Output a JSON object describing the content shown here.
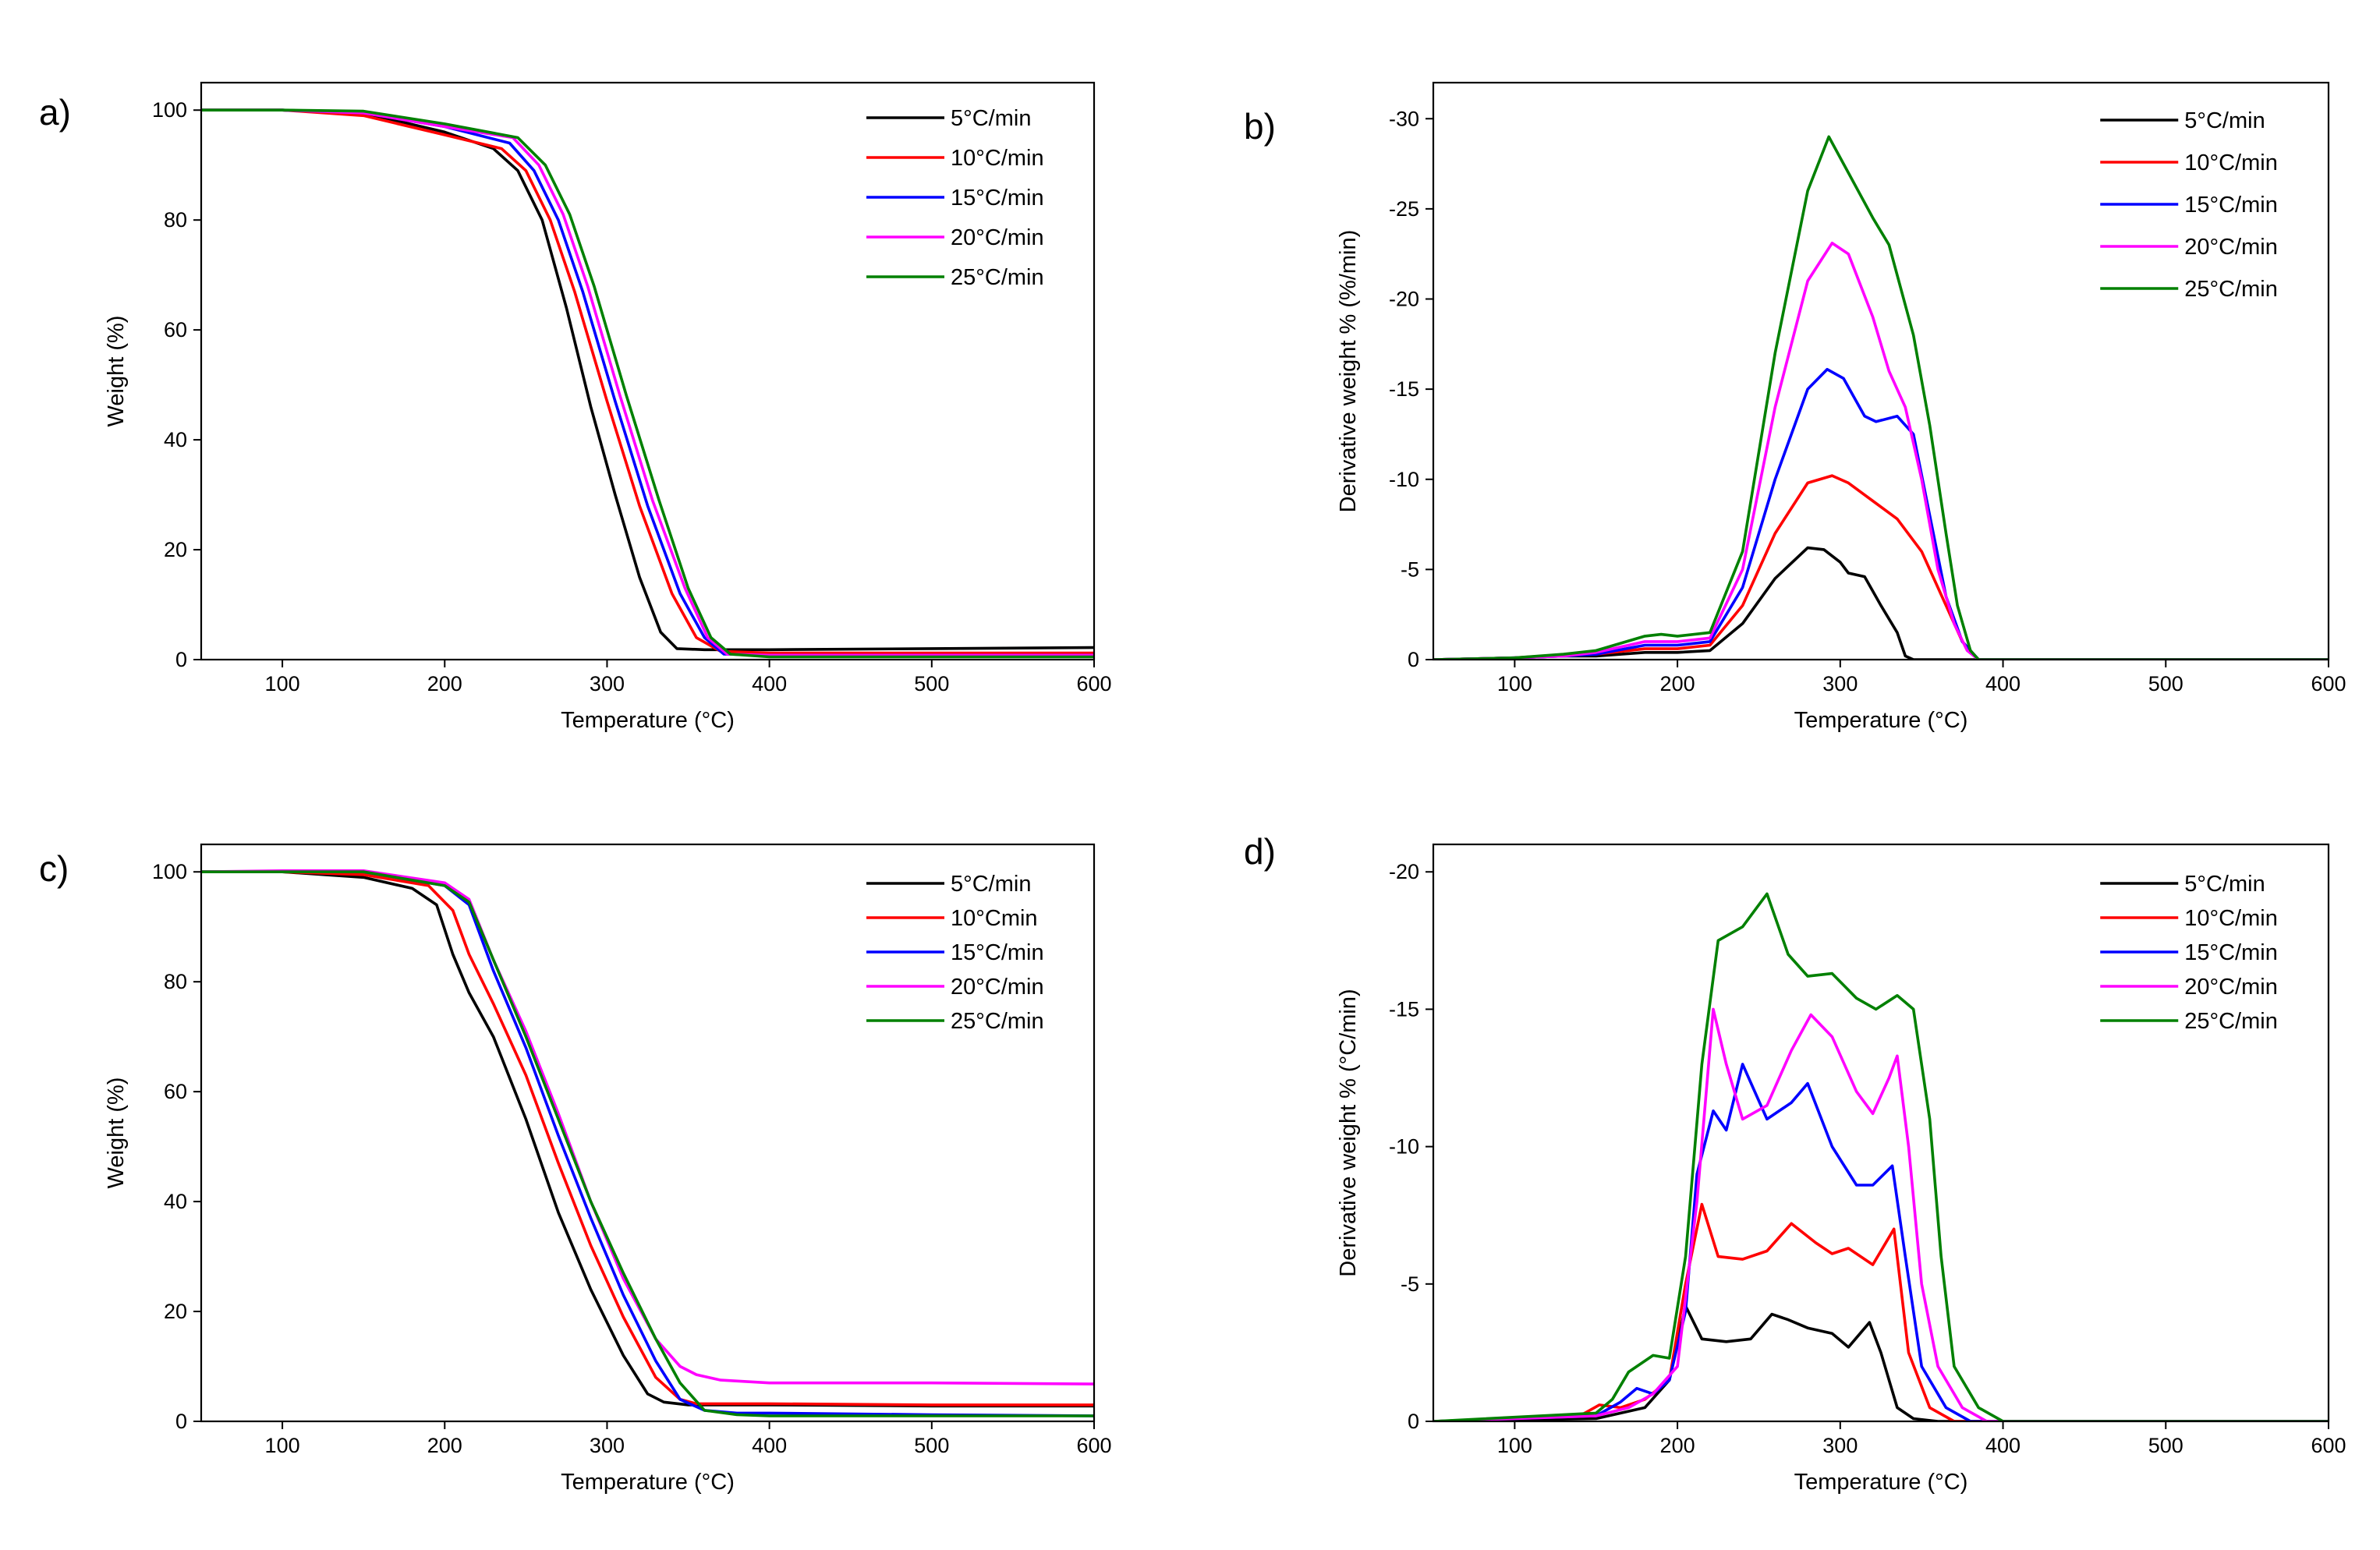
{
  "colors": {
    "5": "#000000",
    "10": "#ff0000",
    "15": "#0000ff",
    "20": "#ff00ff",
    "25": "#008000"
  },
  "chart_data": [
    {
      "id": "a",
      "type": "line",
      "panel_label": "a)",
      "title": "",
      "xlabel": "Temperature (°C)",
      "ylabel": "Weight (%)",
      "xlim": [
        50,
        600
      ],
      "ylim": [
        0,
        105
      ],
      "y_reversed": false,
      "xticks": [
        100,
        200,
        300,
        400,
        500,
        600
      ],
      "yticks": [
        0,
        20,
        40,
        60,
        80,
        100
      ],
      "ytick_labels": [
        "0",
        "20",
        "40",
        "60",
        "80",
        "100"
      ],
      "legend_position": "top-right",
      "series": [
        {
          "name": "5°C/min",
          "color": "#000000",
          "x": [
            50,
            100,
            150,
            200,
            230,
            245,
            260,
            275,
            290,
            305,
            320,
            333,
            343,
            360,
            400,
            500,
            600
          ],
          "y": [
            100,
            100,
            99.5,
            96,
            93,
            89,
            80,
            64,
            46,
            30,
            15,
            5,
            2,
            1.8,
            1.8,
            2,
            2.2
          ]
        },
        {
          "name": "10°C/min",
          "color": "#ff0000",
          "x": [
            50,
            100,
            150,
            200,
            235,
            250,
            265,
            280,
            300,
            320,
            340,
            355,
            370,
            400,
            500,
            600
          ],
          "y": [
            100,
            100,
            99,
            95.5,
            93,
            89,
            80,
            67,
            47,
            28,
            12,
            4,
            1.5,
            1.2,
            1.2,
            1.2
          ]
        },
        {
          "name": "15°C/min",
          "color": "#0000ff",
          "x": [
            50,
            100,
            150,
            200,
            240,
            255,
            270,
            285,
            305,
            325,
            345,
            360,
            372,
            400,
            500,
            600
          ],
          "y": [
            100,
            100,
            99.5,
            97,
            94,
            89,
            80,
            67,
            47,
            28,
            12,
            4,
            1,
            0.8,
            0.8,
            0.8
          ]
        },
        {
          "name": "20°C/min",
          "color": "#ff00ff",
          "x": [
            50,
            100,
            150,
            200,
            242,
            258,
            273,
            288,
            308,
            328,
            348,
            362,
            374,
            400,
            500,
            600
          ],
          "y": [
            100,
            100,
            99.5,
            97,
            95,
            90,
            81,
            68,
            48,
            29,
            13,
            4,
            1,
            0.8,
            0.8,
            0.8
          ]
        },
        {
          "name": "25°C/min",
          "color": "#008000",
          "x": [
            50,
            100,
            150,
            200,
            245,
            262,
            277,
            292,
            312,
            332,
            350,
            364,
            376,
            400,
            500,
            600
          ],
          "y": [
            100,
            100,
            99.8,
            97.5,
            95,
            90,
            81,
            68,
            48,
            29,
            13,
            4,
            1,
            0.5,
            0.5,
            0.5
          ]
        }
      ]
    },
    {
      "id": "b",
      "type": "line",
      "panel_label": "b)",
      "title": "",
      "xlabel": "Temperature (°C)",
      "ylabel": "Derivative weight % (%/min)",
      "xlim": [
        50,
        600
      ],
      "ylim": [
        0,
        32
      ],
      "y_reversed": true,
      "xticks": [
        100,
        200,
        300,
        400,
        500,
        600
      ],
      "yticks": [
        0,
        5,
        10,
        15,
        20,
        25,
        30
      ],
      "ytick_labels": [
        "0",
        "-5",
        "-10",
        "-15",
        "-20",
        "-25",
        "-30"
      ],
      "legend_position": "top-right",
      "series": [
        {
          "name": "5°C/min",
          "color": "#000000",
          "x": [
            50,
            100,
            130,
            150,
            180,
            200,
            220,
            240,
            260,
            280,
            290,
            300,
            305,
            315,
            325,
            335,
            340,
            345,
            360,
            600
          ],
          "y": [
            0,
            0.1,
            0.2,
            0.2,
            0.4,
            0.4,
            0.5,
            2,
            4.5,
            6.2,
            6.1,
            5.4,
            4.8,
            4.6,
            3,
            1.5,
            0.2,
            0,
            0,
            0
          ]
        },
        {
          "name": "10°C/min",
          "color": "#ff0000",
          "x": [
            50,
            100,
            135,
            150,
            180,
            200,
            220,
            240,
            260,
            280,
            295,
            305,
            320,
            335,
            350,
            365,
            375,
            385,
            400,
            600
          ],
          "y": [
            0,
            0.1,
            0.3,
            0.3,
            0.6,
            0.6,
            0.8,
            3,
            7,
            9.8,
            10.2,
            9.8,
            8.8,
            7.8,
            6,
            3,
            1,
            0,
            0,
            0
          ]
        },
        {
          "name": "15°C/min",
          "color": "#0000ff",
          "x": [
            50,
            100,
            130,
            150,
            180,
            200,
            220,
            240,
            260,
            280,
            292,
            302,
            315,
            322,
            335,
            345,
            355,
            365,
            375,
            385,
            400,
            600
          ],
          "y": [
            0,
            0.1,
            0.2,
            0.3,
            0.8,
            0.8,
            1,
            4,
            10,
            15,
            16.1,
            15.6,
            13.5,
            13.2,
            13.5,
            12.5,
            8,
            3.5,
            1,
            0,
            0,
            0
          ]
        },
        {
          "name": "20°C/min",
          "color": "#ff00ff",
          "x": [
            50,
            100,
            130,
            150,
            180,
            200,
            220,
            240,
            260,
            280,
            295,
            305,
            320,
            330,
            340,
            350,
            360,
            370,
            378,
            385,
            400,
            600
          ],
          "y": [
            0,
            0.1,
            0.2,
            0.4,
            1,
            1,
            1.2,
            5,
            14,
            21,
            23.1,
            22.5,
            19,
            16,
            14,
            10,
            5,
            2,
            0.5,
            0,
            0,
            0
          ]
        },
        {
          "name": "25°C/min",
          "color": "#008000",
          "x": [
            50,
            100,
            130,
            150,
            180,
            190,
            200,
            220,
            240,
            260,
            280,
            293,
            305,
            320,
            330,
            345,
            355,
            365,
            372,
            380,
            385,
            400,
            600
          ],
          "y": [
            0,
            0.1,
            0.3,
            0.5,
            1.3,
            1.4,
            1.3,
            1.5,
            6,
            17,
            26,
            29,
            27,
            24.5,
            23,
            18,
            13,
            7,
            3,
            0.5,
            0,
            0,
            0
          ]
        }
      ]
    },
    {
      "id": "c",
      "type": "line",
      "panel_label": "c)",
      "title": "",
      "xlabel": "Temperature (°C)",
      "ylabel": "Weight (%)",
      "xlim": [
        50,
        600
      ],
      "ylim": [
        0,
        105
      ],
      "y_reversed": false,
      "xticks": [
        100,
        200,
        300,
        400,
        500,
        600
      ],
      "yticks": [
        0,
        20,
        40,
        60,
        80,
        100
      ],
      "ytick_labels": [
        "0",
        "20",
        "40",
        "60",
        "80",
        "100"
      ],
      "legend_position": "top-right",
      "series": [
        {
          "name": "5°C/min",
          "color": "#000000",
          "x": [
            50,
            100,
            150,
            180,
            195,
            205,
            215,
            230,
            250,
            270,
            290,
            310,
            325,
            335,
            350,
            400,
            500,
            600
          ],
          "y": [
            100,
            100,
            99,
            97,
            94,
            85,
            78,
            70,
            55,
            38,
            24,
            12,
            5,
            3.5,
            3,
            3,
            2.8,
            2.8
          ]
        },
        {
          "name": "10°Cmin",
          "color": "#ff0000",
          "x": [
            50,
            100,
            150,
            190,
            205,
            215,
            230,
            250,
            270,
            290,
            310,
            330,
            345,
            355,
            370,
            400,
            500,
            600
          ],
          "y": [
            100,
            100,
            99.5,
            97.5,
            93,
            85,
            76,
            63,
            47,
            32,
            19,
            8,
            4,
            3.2,
            3.2,
            3.2,
            3,
            3
          ]
        },
        {
          "name": "15°C/min",
          "color": "#0000ff",
          "x": [
            50,
            100,
            150,
            200,
            215,
            230,
            250,
            270,
            290,
            310,
            330,
            345,
            360,
            380,
            400,
            500,
            600
          ],
          "y": [
            100,
            100,
            100,
            97.5,
            94,
            82,
            68,
            52,
            37,
            23,
            11,
            4,
            2,
            1.5,
            1.5,
            1.2,
            1
          ]
        },
        {
          "name": "20°C/min",
          "color": "#ff00ff",
          "x": [
            50,
            100,
            150,
            200,
            215,
            230,
            250,
            270,
            290,
            310,
            330,
            345,
            355,
            370,
            400,
            500,
            600
          ],
          "y": [
            100,
            100.2,
            100.2,
            98,
            95,
            84,
            71,
            56,
            40,
            26,
            15,
            10,
            8.5,
            7.5,
            7,
            7,
            6.8
          ]
        },
        {
          "name": "25°C/min",
          "color": "#008000",
          "x": [
            50,
            100,
            150,
            200,
            215,
            230,
            250,
            270,
            290,
            310,
            330,
            345,
            360,
            380,
            400,
            500,
            600
          ],
          "y": [
            100,
            100,
            100,
            97.5,
            94.5,
            84,
            70,
            55,
            40,
            27,
            15,
            7,
            2,
            1.2,
            1,
            1,
            1
          ]
        }
      ]
    },
    {
      "id": "d",
      "type": "line",
      "panel_label": "d)",
      "title": "",
      "xlabel": "Temperature (°C)",
      "ylabel": "Derivative weight % (°C/min)",
      "xlim": [
        50,
        600
      ],
      "ylim": [
        0,
        21
      ],
      "y_reversed": true,
      "xticks": [
        100,
        200,
        300,
        400,
        500,
        600
      ],
      "yticks": [
        0,
        5,
        10,
        15,
        20
      ],
      "ytick_labels": [
        "0",
        "-5",
        "-10",
        "-15",
        "-20"
      ],
      "legend_position": "top-right",
      "series": [
        {
          "name": "5°C/min",
          "color": "#000000",
          "x": [
            50,
            150,
            180,
            195,
            205,
            215,
            230,
            245,
            258,
            268,
            280,
            295,
            305,
            318,
            325,
            335,
            345,
            360,
            600
          ],
          "y": [
            0,
            0.1,
            0.5,
            1.5,
            4.2,
            3,
            2.9,
            3,
            3.9,
            3.7,
            3.4,
            3.2,
            2.7,
            3.6,
            2.5,
            0.5,
            0.1,
            0,
            0
          ]
        },
        {
          "name": "10°C/min",
          "color": "#ff0000",
          "x": [
            50,
            140,
            152,
            165,
            180,
            195,
            205,
            215,
            225,
            240,
            255,
            270,
            285,
            295,
            305,
            320,
            333,
            342,
            355,
            370,
            600
          ],
          "y": [
            0,
            0.2,
            0.6,
            0.5,
            0.8,
            1.5,
            5,
            7.9,
            6,
            5.9,
            6.2,
            7.2,
            6.5,
            6.1,
            6.3,
            5.7,
            7,
            2.5,
            0.5,
            0,
            0
          ]
        },
        {
          "name": "15°C/min",
          "color": "#0000ff",
          "x": [
            50,
            150,
            165,
            175,
            185,
            195,
            205,
            212,
            222,
            230,
            240,
            255,
            270,
            280,
            295,
            310,
            320,
            332,
            340,
            350,
            365,
            380,
            600
          ],
          "y": [
            0,
            0.2,
            0.7,
            1.2,
            1,
            1.5,
            4,
            9,
            11.3,
            10.6,
            13,
            11,
            11.6,
            12.3,
            10,
            8.6,
            8.6,
            9.3,
            6,
            2,
            0.5,
            0,
            0
          ]
        },
        {
          "name": "20°C/min",
          "color": "#ff00ff",
          "x": [
            50,
            150,
            170,
            185,
            200,
            212,
            222,
            230,
            240,
            255,
            270,
            282,
            295,
            310,
            320,
            330,
            335,
            342,
            350,
            360,
            375,
            390,
            600
          ],
          "y": [
            0,
            0.2,
            0.5,
            1,
            2,
            8,
            15,
            13,
            11,
            11.5,
            13.5,
            14.8,
            14,
            12,
            11.2,
            12.5,
            13.3,
            10,
            5,
            2,
            0.5,
            0,
            0
          ]
        },
        {
          "name": "25°C/min",
          "color": "#008000",
          "x": [
            50,
            150,
            160,
            170,
            185,
            195,
            205,
            215,
            225,
            240,
            255,
            268,
            280,
            295,
            310,
            322,
            335,
            345,
            355,
            362,
            370,
            385,
            400,
            600
          ],
          "y": [
            0,
            0.3,
            0.8,
            1.8,
            2.4,
            2.3,
            6,
            13,
            17.5,
            18,
            19.2,
            17,
            16.2,
            16.3,
            15.4,
            15,
            15.5,
            15,
            11,
            6,
            2,
            0.5,
            0,
            0
          ]
        }
      ]
    }
  ]
}
